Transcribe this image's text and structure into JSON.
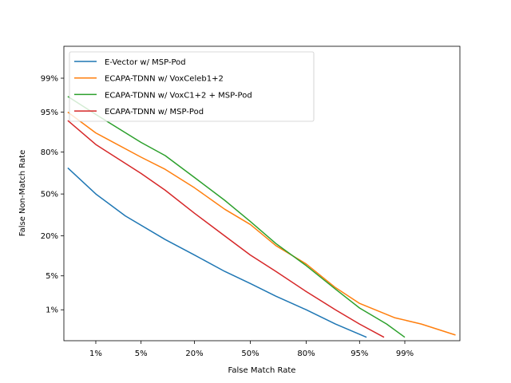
{
  "chart_data": {
    "type": "line",
    "xlabel": "False Match Rate",
    "ylabel": "False Non-Match Rate",
    "scale": "normal-deviate (DET)",
    "x_ticks": [
      "1%",
      "5%",
      "20%",
      "50%",
      "80%",
      "95%",
      "99%"
    ],
    "y_ticks": [
      "1%",
      "5%",
      "20%",
      "50%",
      "80%",
      "95%",
      "99%"
    ],
    "grid": false,
    "legend_position": "top-left",
    "series": [
      {
        "name": "E-Vector w/ MSP-Pod",
        "color": "#1f77b4",
        "points": [
          [
            0.3,
            70
          ],
          [
            1,
            50
          ],
          [
            3,
            33
          ],
          [
            10,
            18
          ],
          [
            20,
            11
          ],
          [
            35,
            6
          ],
          [
            50,
            3.6
          ],
          [
            65,
            2
          ],
          [
            80,
            1
          ],
          [
            90,
            0.45
          ],
          [
            96,
            0.2
          ]
        ]
      },
      {
        "name": "ECAPA-TDNN w/ VoxCeleb1+2",
        "color": "#ff7f0e",
        "points": [
          [
            0.3,
            95
          ],
          [
            1,
            89
          ],
          [
            5,
            77
          ],
          [
            10,
            69
          ],
          [
            20,
            55
          ],
          [
            35,
            38
          ],
          [
            50,
            27
          ],
          [
            65,
            15
          ],
          [
            80,
            8
          ],
          [
            90,
            3
          ],
          [
            95,
            1.4
          ],
          [
            98.5,
            0.65
          ],
          [
            99.5,
            0.45
          ],
          [
            99.9,
            0.23
          ]
        ]
      },
      {
        "name": "ECAPA-TDNN w/ VoxC1+2 + MSP-Pod",
        "color": "#2ca02c",
        "points": [
          [
            0.3,
            97.5
          ],
          [
            1,
            94.5
          ],
          [
            5,
            85
          ],
          [
            10,
            78
          ],
          [
            20,
            63
          ],
          [
            35,
            45
          ],
          [
            50,
            29
          ],
          [
            65,
            16
          ],
          [
            80,
            7.5
          ],
          [
            90,
            2.8
          ],
          [
            95,
            1.1
          ],
          [
            98,
            0.45
          ],
          [
            99,
            0.2
          ]
        ]
      },
      {
        "name": "ECAPA-TDNN w/ MSP-Pod",
        "color": "#d62728",
        "points": [
          [
            0.3,
            93
          ],
          [
            1,
            84
          ],
          [
            5,
            66
          ],
          [
            10,
            53
          ],
          [
            20,
            35
          ],
          [
            35,
            20
          ],
          [
            50,
            11
          ],
          [
            65,
            6
          ],
          [
            80,
            2.5
          ],
          [
            90,
            1
          ],
          [
            95,
            0.45
          ],
          [
            97.8,
            0.2
          ]
        ]
      }
    ]
  }
}
